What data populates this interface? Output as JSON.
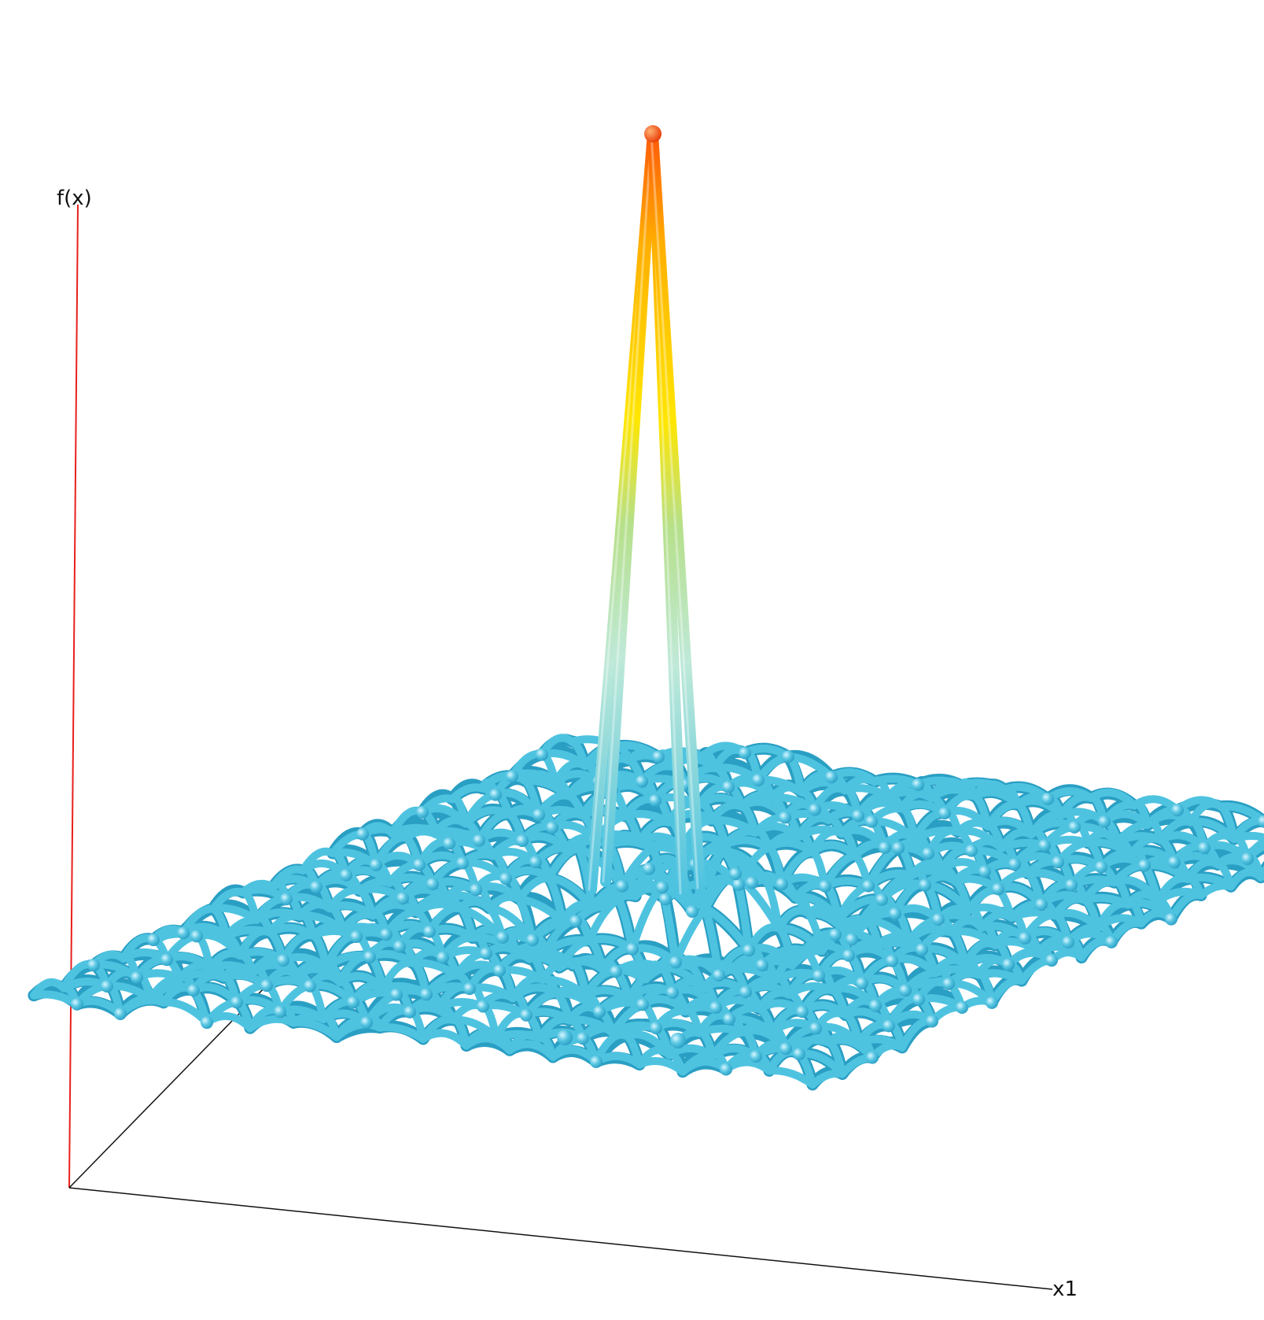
{
  "axes": {
    "vertical_label": "f(x)",
    "horizontal_label": "x1"
  },
  "colors": {
    "vertical_axis": "#e8201c",
    "horizontal_axes": "#111111",
    "mesh_base": "#4ec3e0",
    "mesh_dark": "#2a9fc4",
    "mesh_highlight": "#c8f1fb",
    "peak_yellow": "#ffe600",
    "peak_orange": "#ff7a10",
    "peak_tip": "#ff4a08"
  }
}
